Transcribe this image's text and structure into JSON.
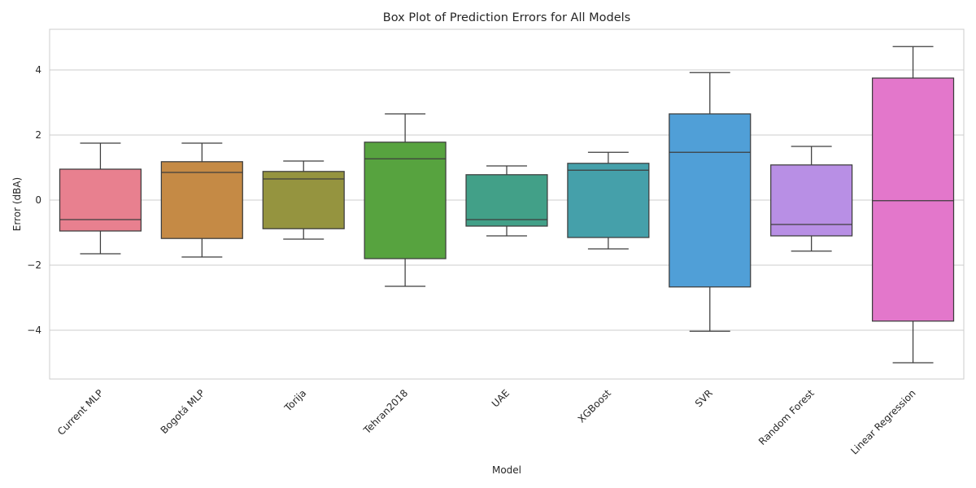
{
  "chart_data": {
    "type": "box",
    "title": "Box Plot of Prediction Errors for All Models",
    "xlabel": "Model",
    "ylabel": "Error (dBA)",
    "ylim": [
      -5.5,
      5.25
    ],
    "yticks": [
      -4,
      -2,
      0,
      2,
      4
    ],
    "grid": true,
    "series": [
      {
        "name": "Current MLP",
        "whislo": -1.65,
        "q1": -0.95,
        "med": -0.6,
        "q3": 0.95,
        "whishi": 1.75,
        "color": "#e8808f"
      },
      {
        "name": "Bogotá MLP",
        "whislo": -1.75,
        "q1": -1.18,
        "med": 0.85,
        "q3": 1.18,
        "whishi": 1.75,
        "color": "#c58a45"
      },
      {
        "name": "Torija",
        "whislo": -1.2,
        "q1": -0.88,
        "med": 0.65,
        "q3": 0.88,
        "whishi": 1.2,
        "color": "#95943f"
      },
      {
        "name": "Tehran2018",
        "whislo": -2.65,
        "q1": -1.8,
        "med": 1.27,
        "q3": 1.78,
        "whishi": 2.65,
        "color": "#57a33f"
      },
      {
        "name": "UAE",
        "whislo": -1.1,
        "q1": -0.8,
        "med": -0.6,
        "q3": 0.78,
        "whishi": 1.05,
        "color": "#42a088"
      },
      {
        "name": "XGBoost",
        "whislo": -1.5,
        "q1": -1.15,
        "med": 0.92,
        "q3": 1.13,
        "whishi": 1.47,
        "color": "#45a0aa"
      },
      {
        "name": "SVR",
        "whislo": -4.03,
        "q1": -2.67,
        "med": 1.47,
        "q3": 2.65,
        "whishi": 3.92,
        "color": "#509fd7"
      },
      {
        "name": "Random Forest",
        "whislo": -1.57,
        "q1": -1.1,
        "med": -0.75,
        "q3": 1.08,
        "whishi": 1.65,
        "color": "#b88fe5"
      },
      {
        "name": "Linear Regression",
        "whislo": -5.0,
        "q1": -3.72,
        "med": -0.02,
        "q3": 3.75,
        "whishi": 4.72,
        "color": "#e377cb"
      }
    ]
  }
}
